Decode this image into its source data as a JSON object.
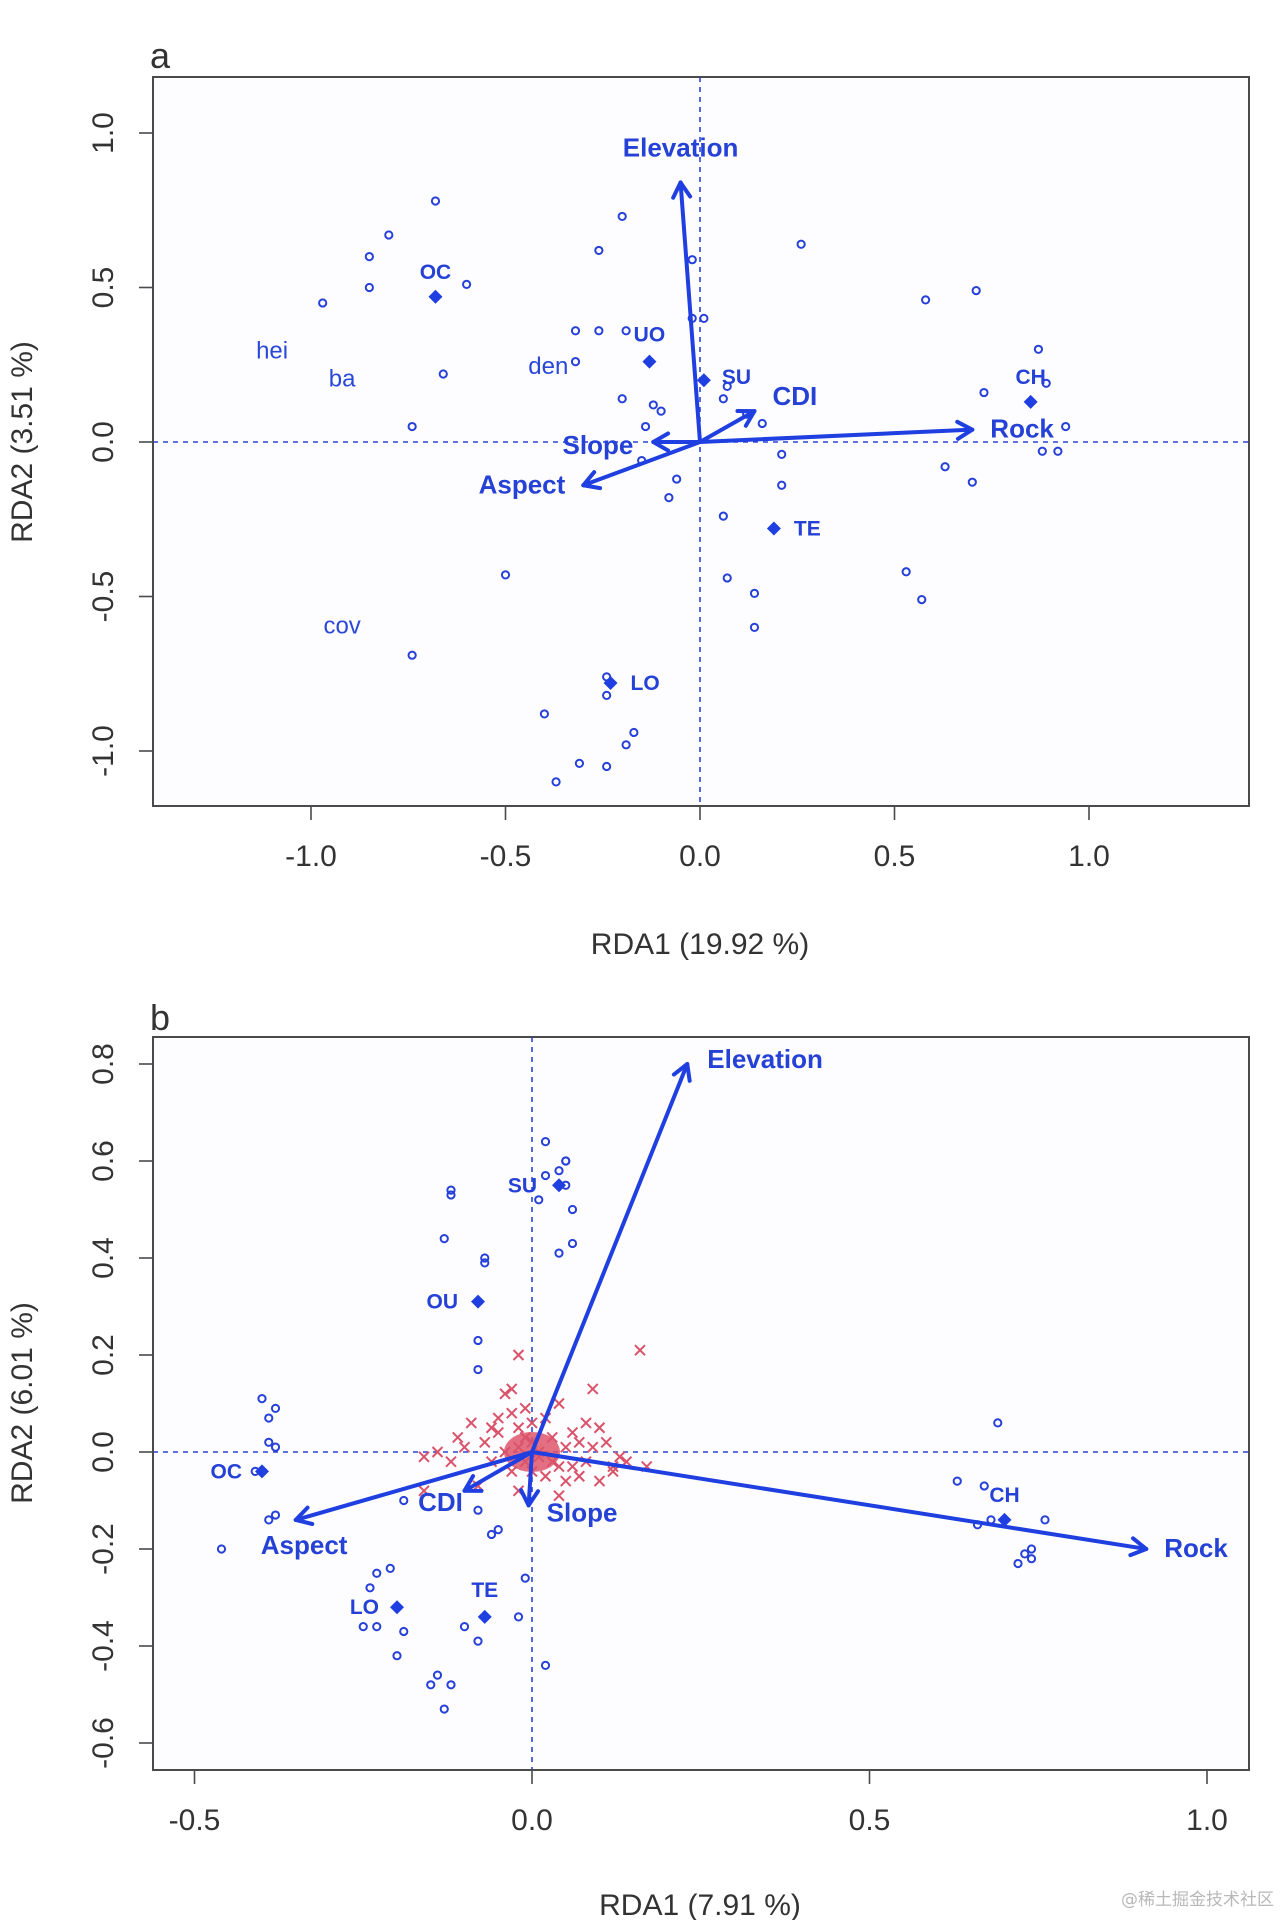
{
  "watermark": "@稀土掘金技术社区",
  "chart_data": [
    {
      "type": "scatter",
      "panel_label": "a",
      "title": "",
      "xlabel": "RDA1 (19.92 %)",
      "ylabel": "RDA2 (3.51 %)",
      "xlim": [
        -1.4,
        1.4
      ],
      "ylim": [
        -1.18,
        1.18
      ],
      "xticks": [
        -1.0,
        -0.5,
        0.0,
        0.5,
        1.0
      ],
      "xtick_labels": [
        "-1.0",
        "-0.5",
        "0.0",
        "0.5",
        "1.0"
      ],
      "yticks": [
        -1.0,
        -0.5,
        0.0,
        0.5,
        1.0
      ],
      "ytick_labels": [
        "-1.0",
        "-0.5",
        "0.0",
        "0.5",
        "1.0"
      ],
      "reference_lines": {
        "x": 0,
        "y": 0,
        "style": "dotted"
      },
      "colors": {
        "sites": "#2740d8",
        "arrows": "#1f3fe0"
      },
      "sites": [
        [
          -0.68,
          0.78
        ],
        [
          -0.8,
          0.67
        ],
        [
          -0.85,
          0.6
        ],
        [
          -0.85,
          0.5
        ],
        [
          -0.97,
          0.45
        ],
        [
          -0.6,
          0.51
        ],
        [
          -0.66,
          0.22
        ],
        [
          -0.74,
          0.05
        ],
        [
          -0.5,
          -0.43
        ],
        [
          -0.74,
          -0.69
        ],
        [
          -0.26,
          0.36
        ],
        [
          -0.19,
          0.36
        ],
        [
          -0.32,
          0.36
        ],
        [
          -0.32,
          0.26
        ],
        [
          -0.26,
          0.62
        ],
        [
          -0.2,
          0.73
        ],
        [
          -0.02,
          0.59
        ],
        [
          -0.02,
          0.4
        ],
        [
          0.01,
          0.4
        ],
        [
          0.07,
          0.18
        ],
        [
          0.06,
          0.14
        ],
        [
          0.26,
          0.64
        ],
        [
          0.58,
          0.46
        ],
        [
          0.71,
          0.49
        ],
        [
          0.73,
          0.16
        ],
        [
          0.87,
          0.3
        ],
        [
          0.89,
          0.19
        ],
        [
          0.94,
          0.05
        ],
        [
          0.88,
          -0.03
        ],
        [
          0.92,
          -0.03
        ],
        [
          0.63,
          -0.08
        ],
        [
          0.7,
          -0.13
        ],
        [
          0.16,
          0.06
        ],
        [
          0.12,
          0.09
        ],
        [
          0.21,
          -0.04
        ],
        [
          0.21,
          -0.14
        ],
        [
          0.06,
          -0.24
        ],
        [
          0.07,
          -0.44
        ],
        [
          0.14,
          -0.49
        ],
        [
          0.14,
          -0.6
        ],
        [
          0.53,
          -0.42
        ],
        [
          0.57,
          -0.51
        ],
        [
          -0.1,
          0.1
        ],
        [
          -0.12,
          0.12
        ],
        [
          -0.2,
          0.14
        ],
        [
          -0.14,
          0.05
        ],
        [
          -0.15,
          -0.06
        ],
        [
          -0.06,
          -0.12
        ],
        [
          -0.08,
          -0.18
        ],
        [
          -0.24,
          -0.76
        ],
        [
          -0.24,
          -0.82
        ],
        [
          -0.4,
          -0.88
        ],
        [
          -0.19,
          -0.98
        ],
        [
          -0.17,
          -0.94
        ],
        [
          -0.31,
          -1.04
        ],
        [
          -0.37,
          -1.1
        ],
        [
          -0.24,
          -1.05
        ]
      ],
      "centroids": [
        {
          "label": "OC",
          "x": -0.68,
          "y": 0.47
        },
        {
          "label": "UO",
          "x": -0.13,
          "y": 0.26
        },
        {
          "label": "SU",
          "x": 0.01,
          "y": 0.2
        },
        {
          "label": "CH",
          "x": 0.85,
          "y": 0.13
        },
        {
          "label": "TE",
          "x": 0.19,
          "y": -0.28
        },
        {
          "label": "LO",
          "x": -0.23,
          "y": -0.78
        }
      ],
      "arrows": [
        {
          "label": "Elevation",
          "x": -0.05,
          "y": 0.84
        },
        {
          "label": "Rock",
          "x": 0.7,
          "y": 0.04
        },
        {
          "label": "CDI",
          "x": 0.14,
          "y": 0.1
        },
        {
          "label": "Slope",
          "x": -0.12,
          "y": 0.0
        },
        {
          "label": "Aspect",
          "x": -0.3,
          "y": -0.14
        }
      ],
      "species_labels": [
        {
          "label": "hei",
          "x": -1.1,
          "y": 0.27
        },
        {
          "label": "ba",
          "x": -0.92,
          "y": 0.18
        },
        {
          "label": "den",
          "x": -0.39,
          "y": 0.22
        },
        {
          "label": "cov",
          "x": -0.92,
          "y": -0.62
        }
      ]
    },
    {
      "type": "scatter",
      "panel_label": "b",
      "title": "",
      "xlabel": "RDA1 (7.91 %)",
      "ylabel": "RDA2 (6.01 %)",
      "xlim": [
        -0.56,
        1.06
      ],
      "ylim": [
        -0.655,
        0.855
      ],
      "xticks": [
        -0.5,
        0.0,
        0.5,
        1.0
      ],
      "xtick_labels": [
        "-0.5",
        "0.0",
        "0.5",
        "1.0"
      ],
      "yticks": [
        -0.6,
        -0.4,
        -0.2,
        0.0,
        0.2,
        0.4,
        0.6,
        0.8
      ],
      "ytick_labels": [
        "-0.6",
        "-0.4",
        "-0.2",
        "0.0",
        "0.2",
        "0.4",
        "0.6",
        "0.8"
      ],
      "reference_lines": {
        "x": 0,
        "y": 0,
        "style": "dotted"
      },
      "colors": {
        "sites": "#2740d8",
        "arrows": "#1f3fe0",
        "species": "#d9536a"
      },
      "sites": [
        [
          -0.12,
          0.54
        ],
        [
          -0.12,
          0.53
        ],
        [
          -0.13,
          0.44
        ],
        [
          -0.07,
          0.4
        ],
        [
          -0.07,
          0.39
        ],
        [
          -0.08,
          0.23
        ],
        [
          -0.08,
          0.17
        ],
        [
          0.02,
          0.64
        ],
        [
          0.05,
          0.6
        ],
        [
          0.05,
          0.6
        ],
        [
          0.04,
          0.58
        ],
        [
          0.02,
          0.57
        ],
        [
          0.05,
          0.55
        ],
        [
          0.01,
          0.52
        ],
        [
          0.06,
          0.5
        ],
        [
          0.06,
          0.43
        ],
        [
          0.04,
          0.41
        ],
        [
          -0.4,
          0.11
        ],
        [
          -0.38,
          0.09
        ],
        [
          -0.39,
          0.07
        ],
        [
          -0.39,
          0.02
        ],
        [
          -0.38,
          0.01
        ],
        [
          -0.41,
          -0.04
        ],
        [
          -0.38,
          -0.13
        ],
        [
          -0.39,
          -0.14
        ],
        [
          -0.46,
          -0.2
        ],
        [
          -0.19,
          -0.1
        ],
        [
          -0.06,
          -0.17
        ],
        [
          -0.05,
          -0.16
        ],
        [
          -0.08,
          -0.12
        ],
        [
          -0.01,
          -0.26
        ],
        [
          -0.02,
          -0.34
        ],
        [
          0.02,
          -0.44
        ],
        [
          -0.24,
          -0.28
        ],
        [
          -0.23,
          -0.25
        ],
        [
          -0.21,
          -0.24
        ],
        [
          -0.25,
          -0.36
        ],
        [
          -0.23,
          -0.36
        ],
        [
          -0.19,
          -0.37
        ],
        [
          -0.2,
          -0.42
        ],
        [
          -0.1,
          -0.36
        ],
        [
          -0.08,
          -0.39
        ],
        [
          -0.14,
          -0.46
        ],
        [
          -0.15,
          -0.48
        ],
        [
          -0.12,
          -0.48
        ],
        [
          -0.13,
          -0.53
        ],
        [
          0.69,
          0.06
        ],
        [
          0.63,
          -0.06
        ],
        [
          0.67,
          -0.07
        ],
        [
          0.66,
          -0.15
        ],
        [
          0.68,
          -0.14
        ],
        [
          0.76,
          -0.14
        ],
        [
          0.73,
          -0.21
        ],
        [
          0.74,
          -0.2
        ],
        [
          0.74,
          -0.22
        ],
        [
          0.72,
          -0.23
        ]
      ],
      "species_points_note": "dense cluster of red x markers around origin",
      "species_points": [
        [
          -0.02,
          0.2
        ],
        [
          0.16,
          0.21
        ],
        [
          -0.04,
          0.12
        ],
        [
          0.04,
          0.1
        ],
        [
          -0.03,
          0.13
        ],
        [
          -0.01,
          0.09
        ],
        [
          0.09,
          0.13
        ],
        [
          0.08,
          0.06
        ],
        [
          -0.09,
          0.06
        ],
        [
          -0.11,
          0.03
        ],
        [
          -0.14,
          0.0
        ],
        [
          -0.16,
          -0.01
        ],
        [
          0.1,
          0.05
        ],
        [
          0.11,
          0.02
        ],
        [
          0.09,
          0.01
        ],
        [
          0.14,
          -0.02
        ],
        [
          -0.07,
          0.02
        ],
        [
          -0.05,
          0.04
        ],
        [
          -0.02,
          0.05
        ],
        [
          0.03,
          0.03
        ],
        [
          0.05,
          0.01
        ],
        [
          0.06,
          -0.03
        ],
        [
          0.02,
          -0.05
        ],
        [
          -0.03,
          -0.04
        ],
        [
          -0.06,
          -0.02
        ],
        [
          -0.04,
          0.0
        ],
        [
          0.0,
          0.02
        ],
        [
          0.01,
          -0.01
        ],
        [
          -0.01,
          -0.02
        ],
        [
          0.03,
          -0.02
        ],
        [
          0.07,
          -0.05
        ],
        [
          0.05,
          -0.06
        ],
        [
          -0.08,
          -0.07
        ],
        [
          -0.02,
          -0.08
        ],
        [
          0.04,
          -0.09
        ],
        [
          0.1,
          -0.06
        ],
        [
          0.12,
          -0.03
        ],
        [
          0.17,
          -0.03
        ],
        [
          -0.16,
          -0.08
        ],
        [
          -0.05,
          0.07
        ],
        [
          -0.03,
          0.08
        ],
        [
          0.0,
          0.06
        ],
        [
          0.02,
          0.07
        ],
        [
          0.06,
          0.04
        ],
        [
          -0.01,
          0.03
        ],
        [
          0.0,
          -0.04
        ],
        [
          -0.02,
          0.01
        ],
        [
          0.01,
          0.0
        ],
        [
          0.04,
          -0.03
        ],
        [
          -0.06,
          0.05
        ],
        [
          0.07,
          0.02
        ],
        [
          0.13,
          -0.01
        ],
        [
          0.12,
          -0.04
        ],
        [
          0.08,
          -0.02
        ],
        [
          -0.1,
          0.01
        ],
        [
          -0.12,
          -0.02
        ]
      ],
      "centroids": [
        {
          "label": "SU",
          "x": 0.04,
          "y": 0.55
        },
        {
          "label": "OU",
          "x": -0.08,
          "y": 0.31
        },
        {
          "label": "OC",
          "x": -0.4,
          "y": -0.04
        },
        {
          "label": "LO",
          "x": -0.2,
          "y": -0.32
        },
        {
          "label": "TE",
          "x": -0.07,
          "y": -0.34
        },
        {
          "label": "CH",
          "x": 0.7,
          "y": -0.14
        }
      ],
      "arrows": [
        {
          "label": "Elevation",
          "x": 0.23,
          "y": 0.8
        },
        {
          "label": "Rock",
          "x": 0.91,
          "y": -0.2
        },
        {
          "label": "Aspect",
          "x": -0.35,
          "y": -0.14
        },
        {
          "label": "CDI",
          "x": -0.1,
          "y": -0.08
        },
        {
          "label": "Slope",
          "x": -0.005,
          "y": -0.11
        }
      ]
    }
  ]
}
